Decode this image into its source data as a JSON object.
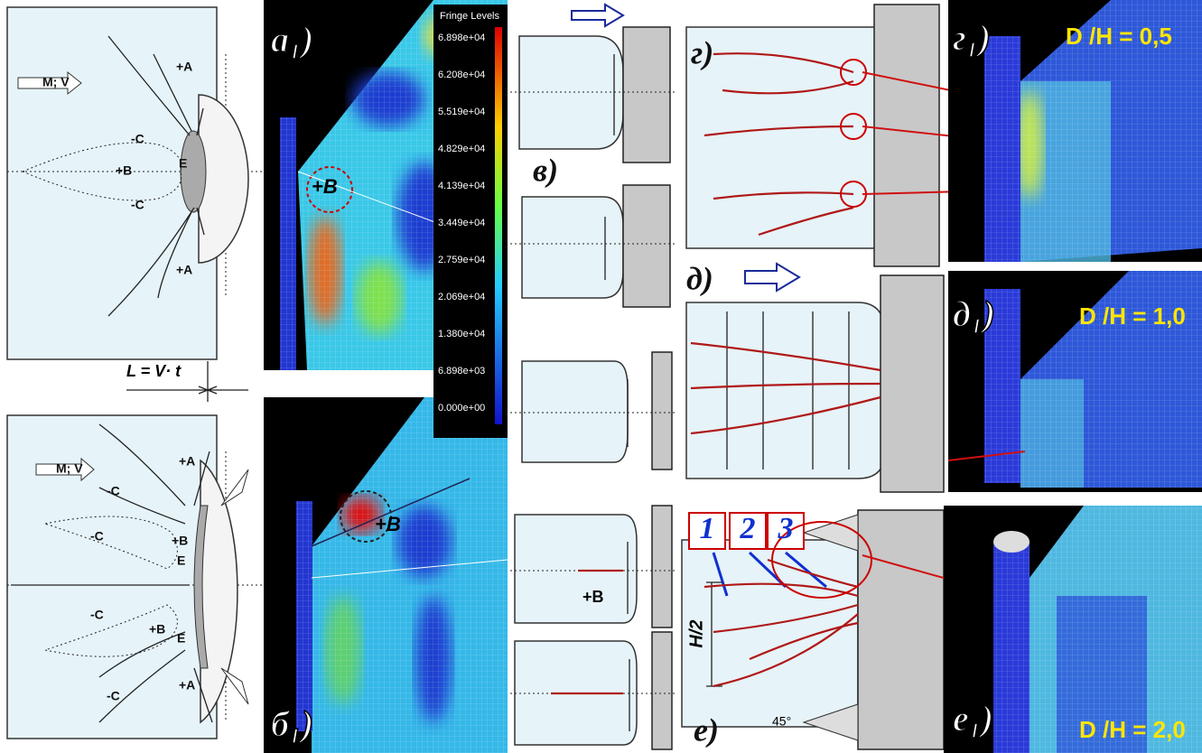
{
  "left_top": {
    "arrow_label": "M; V",
    "labels": [
      "+A",
      "-C",
      "+B",
      "E",
      "-C",
      "+A"
    ]
  },
  "dimension_label": "L = V· t",
  "left_bottom": {
    "arrow_label": "M; V",
    "labels": [
      "+A",
      "-C",
      "-C",
      "+B",
      "E",
      "-C",
      "+B",
      "E",
      "-C",
      "+A"
    ]
  },
  "panel_a1": {
    "label": "а₁)",
    "point_label": "+B"
  },
  "fringe_legend": {
    "title": "Fringe Levels",
    "levels": [
      "6.898e+04",
      "6.208e+04",
      "5.519e+04",
      "4.829e+04",
      "4.139e+04",
      "3.449e+04",
      "2.759e+04",
      "2.069e+04",
      "1.380e+04",
      "6.898e+03",
      "0.000e+00"
    ]
  },
  "panel_b1": {
    "label": "б₁)",
    "point_label": "+B"
  },
  "panel_v": {
    "label": "в)",
    "point_label": "+B"
  },
  "panel_g": {
    "label": "г)"
  },
  "panel_g1": {
    "label": "г₁)",
    "ratio": "D /H = 0,5"
  },
  "panel_d": {
    "label": "д)"
  },
  "panel_d1": {
    "label": "д₁)",
    "ratio": "D /H = 1,0"
  },
  "panel_e": {
    "label": "е)",
    "zones": [
      "1",
      "2",
      "3"
    ],
    "dimension": "H/2",
    "angle": "45°"
  },
  "panel_e1": {
    "label": "е₁)",
    "ratio": "D /H = 2,0"
  }
}
